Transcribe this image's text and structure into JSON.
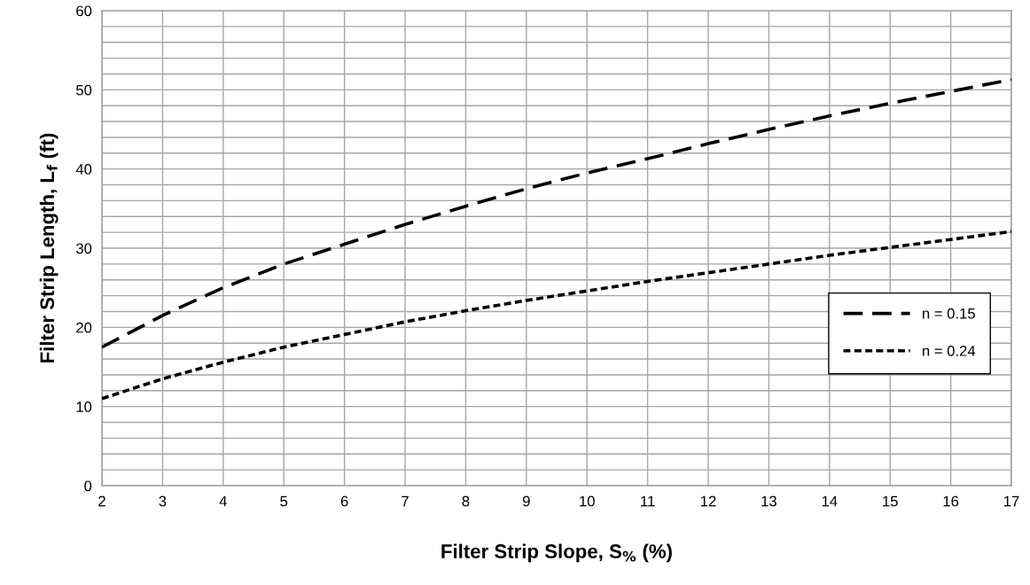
{
  "chart_data": {
    "type": "line",
    "xlabel": "Filter Strip Slope, S$_{%}$ (%)",
    "ylabel": "Filter Strip Length, L$_{f}$ (ft)",
    "x": [
      2,
      3,
      4,
      5,
      6,
      7,
      8,
      9,
      10,
      11,
      12,
      13,
      14,
      15,
      16,
      17
    ],
    "series": [
      {
        "name": "n = 0.15",
        "color": "#000000",
        "line_style": "dashed",
        "values": [
          17.5,
          21.5,
          25,
          28,
          30.5,
          33,
          35.3,
          37.5,
          39.5,
          41.3,
          43.2,
          45,
          46.7,
          48.3,
          49.8,
          51.3
        ]
      },
      {
        "name": "n = 0.24",
        "color": "#000000",
        "line_style": "dotted",
        "values": [
          11,
          13.5,
          15.6,
          17.5,
          19.1,
          20.7,
          22.1,
          23.4,
          24.6,
          25.8,
          26.9,
          28.0,
          29.1,
          30.1,
          31.1,
          32.1
        ]
      }
    ],
    "xlim": [
      2,
      17
    ],
    "xticks": [
      2,
      3,
      4,
      5,
      6,
      7,
      8,
      9,
      10,
      11,
      12,
      13,
      14,
      15,
      16,
      17
    ],
    "ylim": [
      0,
      60
    ],
    "yticks": [
      0,
      {
        "value": 2,
        "label": null
      },
      {
        "value": 4,
        "label": null
      },
      {
        "value": 6,
        "label": null
      },
      {
        "value": 8,
        "label": null
      },
      10,
      {
        "value": 12,
        "label": null
      },
      {
        "value": 14,
        "label": null
      },
      {
        "value": 16,
        "label": null
      },
      {
        "value": 18,
        "label": null
      },
      20,
      {
        "value": 22,
        "label": null
      },
      {
        "value": 24,
        "label": null
      },
      {
        "value": 26,
        "label": null
      },
      {
        "value": 28,
        "label": null
      },
      30,
      {
        "value": 32,
        "label": null
      },
      {
        "value": 34,
        "label": null
      },
      {
        "value": 36,
        "label": null
      },
      {
        "value": 38,
        "label": null
      },
      40,
      {
        "value": 42,
        "label": null
      },
      {
        "value": 44,
        "label": null
      },
      {
        "value": 46,
        "label": null
      },
      {
        "value": 48,
        "label": null
      },
      50,
      {
        "value": 52,
        "label": null
      },
      {
        "value": 54,
        "label": null
      },
      {
        "value": 56,
        "label": null
      },
      {
        "value": 58,
        "label": null
      },
      60
    ],
    "grid": true,
    "legend": "bottom right",
    "marker": "none"
  }
}
